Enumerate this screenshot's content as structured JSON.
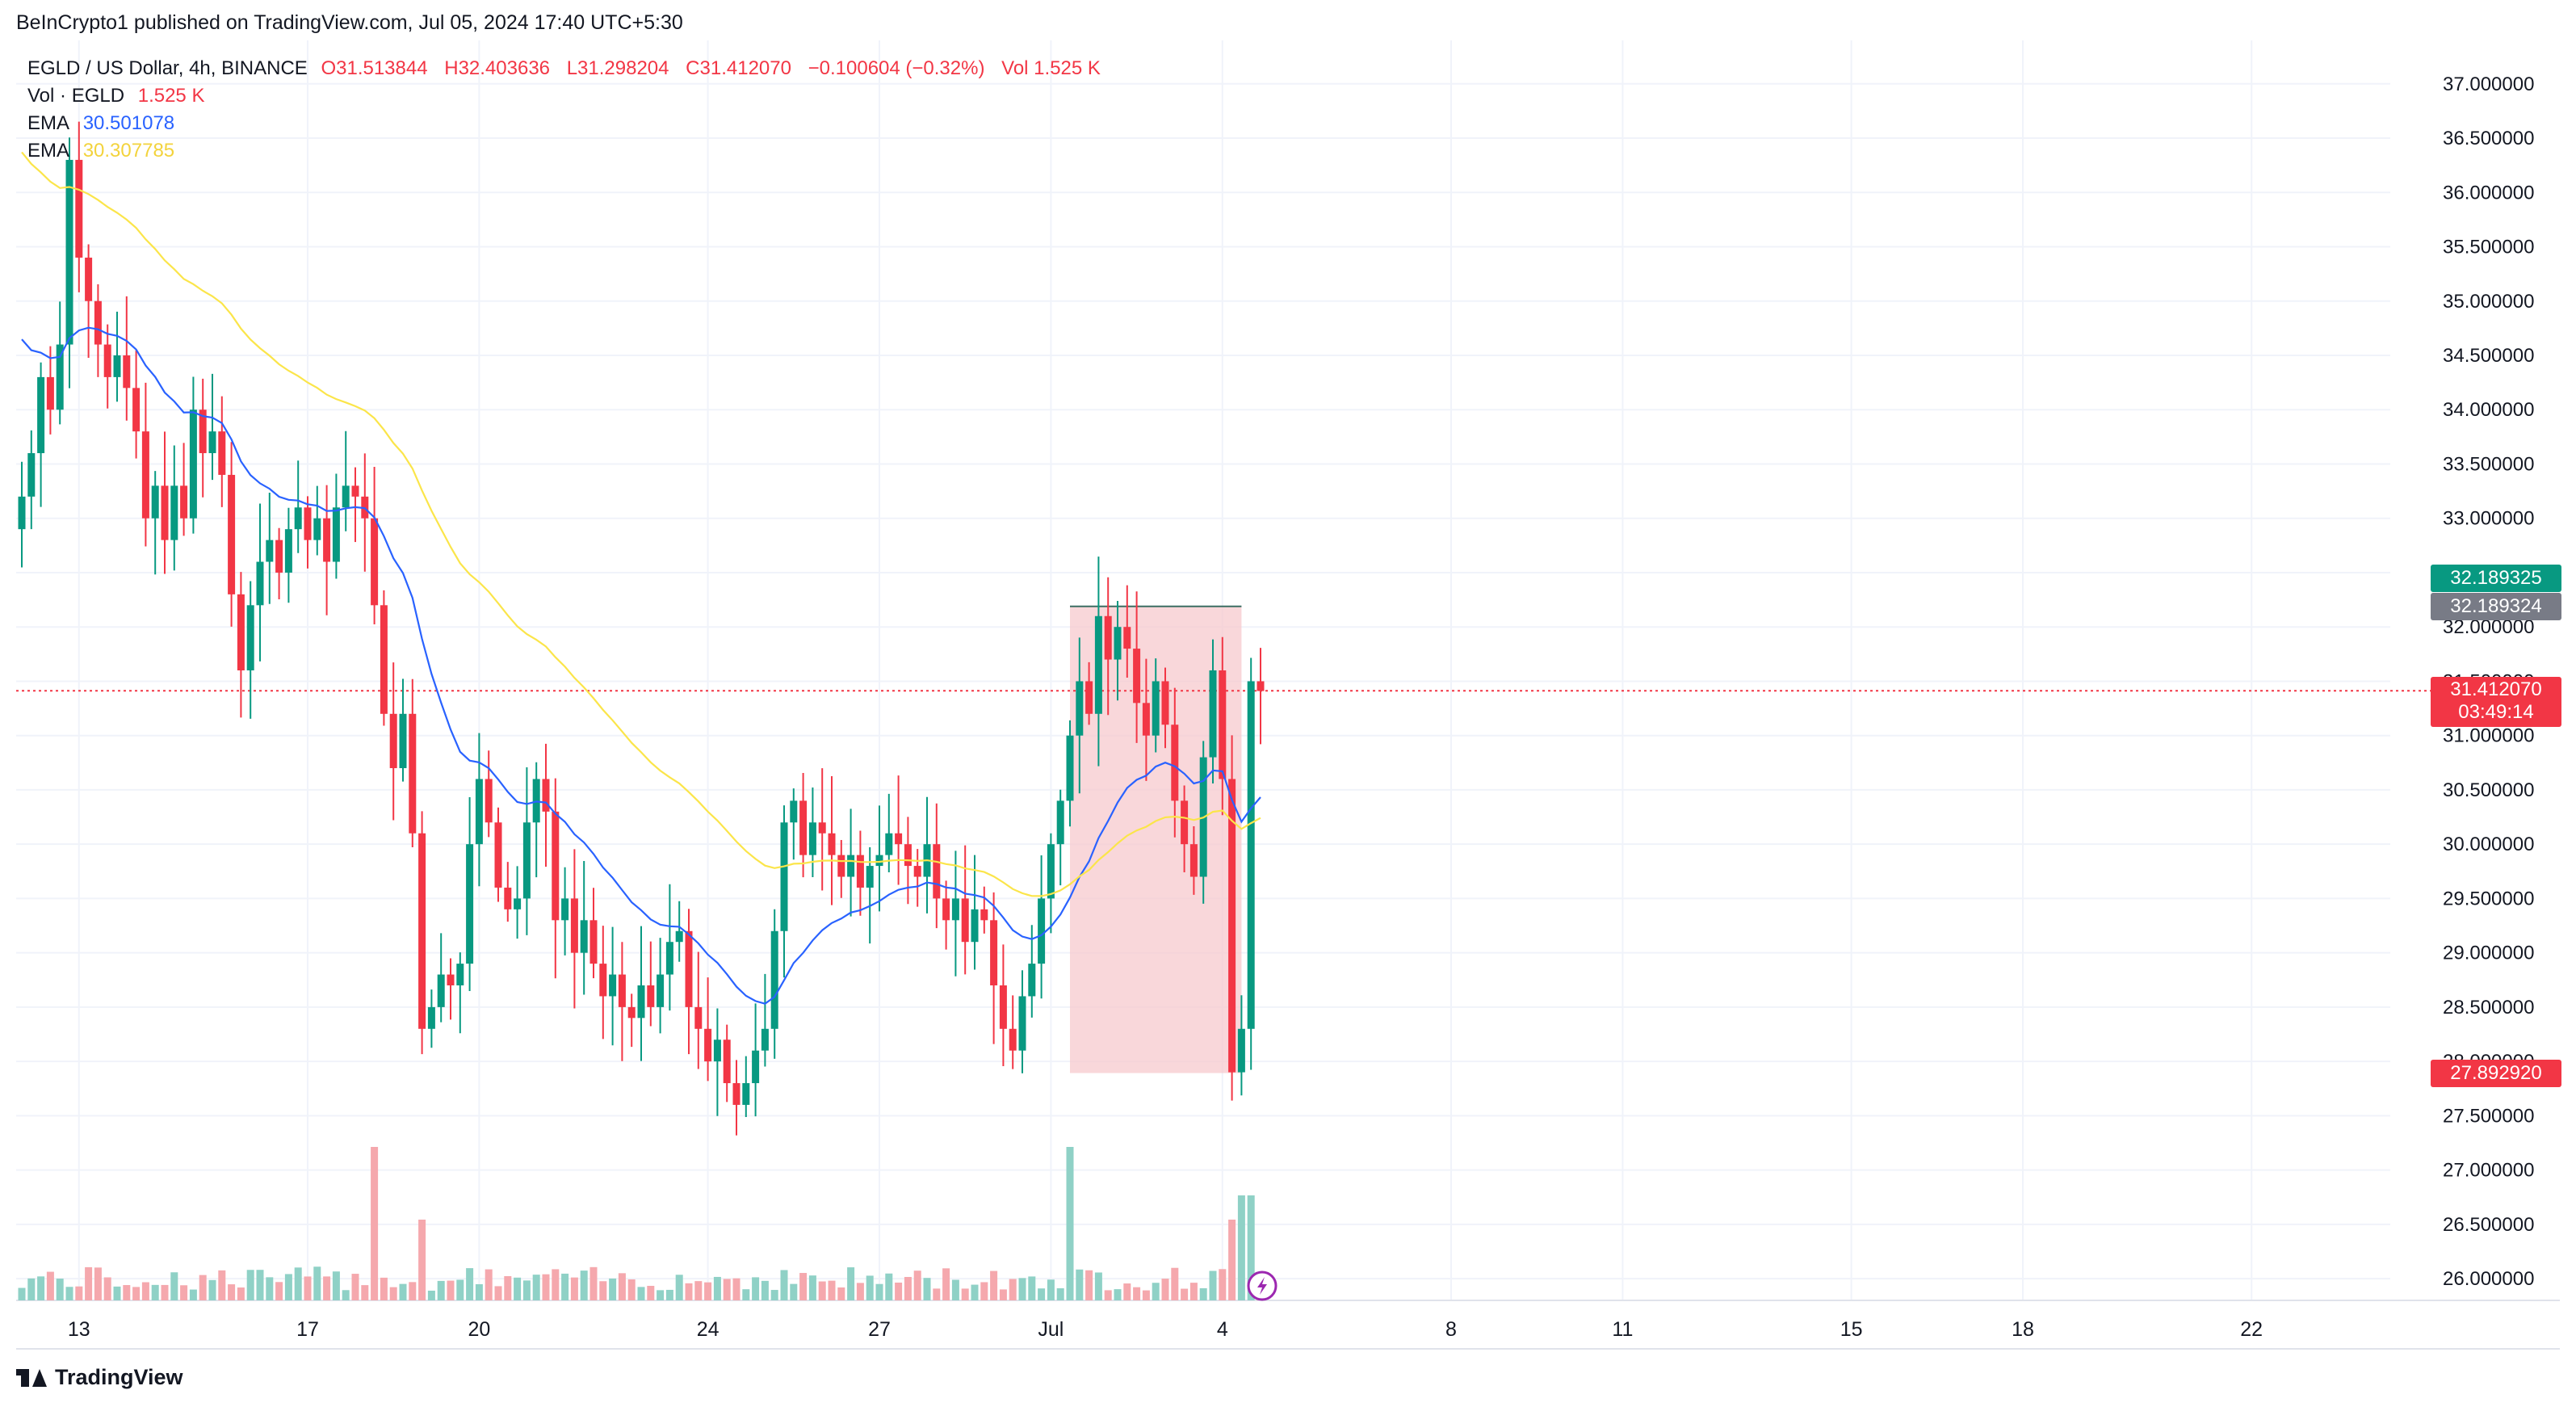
{
  "header": {
    "publisher": "BeInCrypto1 published on TradingView.com, Jul 05, 2024 17:40 UTC+5:30"
  },
  "legend": {
    "symbol": "EGLD / US Dollar, 4h, BINANCE",
    "open": "O31.513844",
    "high": "H32.403636",
    "low": "L31.298204",
    "close": "C31.412070",
    "change": "−0.100604 (−0.32%)",
    "volume": "Vol 1.525 K",
    "vol_label": "Vol · EGLD",
    "vol_value": "1.525 K",
    "ema1_label": "EMA",
    "ema1_value": "30.501078",
    "ema2_label": "EMA",
    "ema2_value": "30.307785"
  },
  "footer": {
    "brand": "TradingView"
  },
  "price_tags": {
    "current_price": "31.412070",
    "countdown": "03:49:14",
    "top_level": "32.189325",
    "top_level_alt": "32.189324",
    "bottom_level": "27.892920"
  },
  "colors": {
    "up": "#089981",
    "down": "#f23645",
    "ema_fast": "#2962ff",
    "ema_slow": "#fbe54a",
    "zone_fill": "#f7c6cb",
    "vol_up": "#8fd1c6",
    "vol_down": "#f5a8ad",
    "grid": "#f0f3fa"
  },
  "chart_data": {
    "type": "candlestick",
    "symbol": "EGLD / US Dollar",
    "interval": "4h",
    "exchange": "BINANCE",
    "ylim": [
      25.8,
      37.4
    ],
    "y_ticks": [
      "26.000000",
      "26.500000",
      "27.000000",
      "27.500000",
      "28.000000",
      "28.500000",
      "29.000000",
      "29.500000",
      "30.000000",
      "30.500000",
      "31.000000",
      "31.500000",
      "32.000000",
      "32.500000",
      "33.000000",
      "33.500000",
      "34.000000",
      "34.500000",
      "35.000000",
      "35.500000",
      "36.000000",
      "36.500000",
      "37.000000"
    ],
    "x_ticks": [
      {
        "label": "13",
        "bar": 6
      },
      {
        "label": "17",
        "bar": 30
      },
      {
        "label": "20",
        "bar": 48
      },
      {
        "label": "24",
        "bar": 72
      },
      {
        "label": "27",
        "bar": 90
      },
      {
        "label": "Jul",
        "bar": 108
      },
      {
        "label": "4",
        "bar": 126
      },
      {
        "label": "8",
        "bar": 150
      },
      {
        "label": "11",
        "bar": 168
      },
      {
        "label": "15",
        "bar": 192
      },
      {
        "label": "18",
        "bar": 210
      },
      {
        "label": "22",
        "bar": 234
      }
    ],
    "closes": [
      33.2,
      33.6,
      34.3,
      34.0,
      34.6,
      36.3,
      35.4,
      35.0,
      34.6,
      34.3,
      34.5,
      34.2,
      33.8,
      33.0,
      33.3,
      32.8,
      33.3,
      33.0,
      34.0,
      33.6,
      33.8,
      33.4,
      32.3,
      31.6,
      32.2,
      32.6,
      32.8,
      32.5,
      32.9,
      33.1,
      32.8,
      33.0,
      32.6,
      33.1,
      33.3,
      33.2,
      33.0,
      32.2,
      31.2,
      30.7,
      31.2,
      30.1,
      28.3,
      28.5,
      28.8,
      28.7,
      28.9,
      30.0,
      30.6,
      30.2,
      29.6,
      29.4,
      29.5,
      30.2,
      30.6,
      30.3,
      29.3,
      29.5,
      29.0,
      29.3,
      28.9,
      28.6,
      28.8,
      28.5,
      28.4,
      28.7,
      28.5,
      28.8,
      29.1,
      29.2,
      28.5,
      28.3,
      28.0,
      28.2,
      27.8,
      27.6,
      27.8,
      28.1,
      28.3,
      29.2,
      30.2,
      30.4,
      29.9,
      30.2,
      30.1,
      29.9,
      29.7,
      29.9,
      29.6,
      29.8,
      29.9,
      30.1,
      30.0,
      29.8,
      29.7,
      30.0,
      29.5,
      29.3,
      29.5,
      29.1,
      29.4,
      29.3,
      28.7,
      28.3,
      28.1,
      28.6,
      28.9,
      29.5,
      30.0,
      30.4,
      31.0,
      31.5,
      31.2,
      32.1,
      31.7,
      32.0,
      31.8,
      31.3,
      31.0,
      31.5,
      31.1,
      30.4,
      30.0,
      29.7,
      30.8,
      31.6,
      30.6,
      27.9,
      28.3,
      31.5,
      31.41
    ],
    "ema_fast_label": "EMA",
    "ema_fast_last": 30.501078,
    "ema_slow_label": "EMA",
    "ema_slow_last": 30.307785,
    "zone": {
      "top": 32.189325,
      "bottom": 27.89292,
      "from_bar": 110,
      "to_bar": 128
    },
    "current_price": 31.41207,
    "volume_label": "Vol · EGLD",
    "volume_last": "1.525 K"
  }
}
